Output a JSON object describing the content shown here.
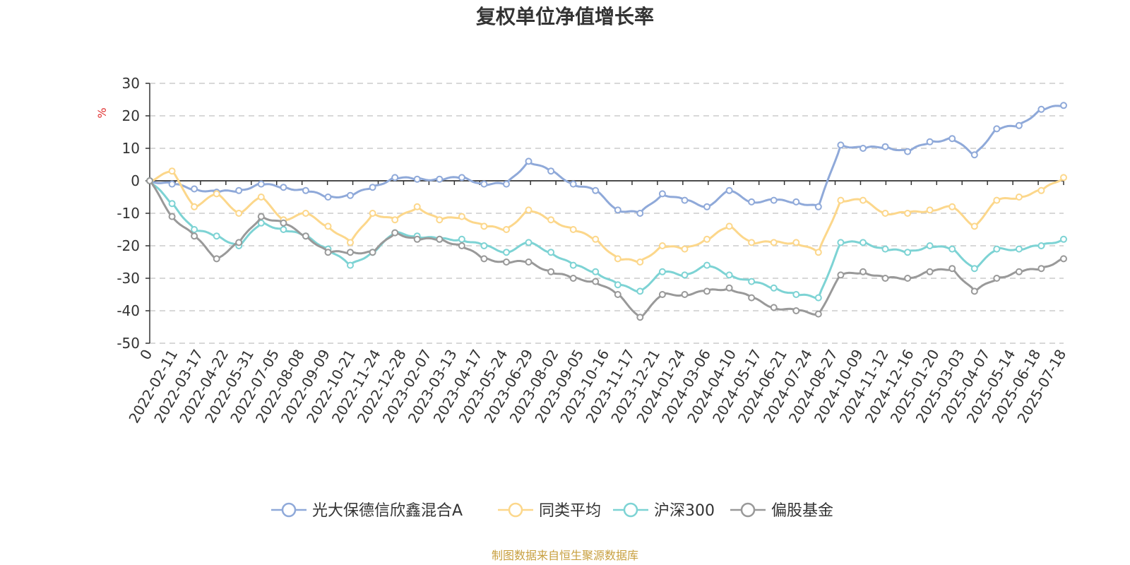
{
  "chart_data": {
    "type": "line",
    "title": "复权单位净值增长率",
    "ylabel": "%",
    "xlabel": "",
    "ylim": [
      -50,
      30
    ],
    "y_ticks": [
      30,
      20,
      10,
      0,
      -10,
      -20,
      -30,
      -40,
      -50
    ],
    "x_ticks": [
      "0",
      "2022-02-11",
      "2022-03-17",
      "2022-04-22",
      "2022-05-31",
      "2022-07-05",
      "2022-08-08",
      "2022-09-09",
      "2022-10-21",
      "2022-11-24",
      "2022-12-28",
      "2023-02-07",
      "2023-03-13",
      "2023-04-17",
      "2023-05-24",
      "2023-06-29",
      "2023-08-02",
      "2023-09-05",
      "2023-10-16",
      "2023-11-17",
      "2023-12-21",
      "2024-01-24",
      "2024-03-06",
      "2024-04-10",
      "2024-05-17",
      "2024-06-21",
      "2024-07-24",
      "2024-08-27",
      "2024-10-09",
      "2024-11-12",
      "2024-12-16",
      "2025-01-20",
      "2025-03-03",
      "2025-04-07",
      "2025-05-14",
      "2025-06-18",
      "2025-07-18"
    ],
    "grid": true,
    "legend_position": "bottom",
    "series": [
      {
        "name": "光大保德信欣鑫混合A",
        "color": "#8fa9d9",
        "values": [
          0,
          -1,
          -2.5,
          -3.5,
          -3,
          -1,
          -2,
          -3,
          -5,
          -4.5,
          -2,
          1,
          0.5,
          0.5,
          1,
          -1,
          -1,
          6,
          3,
          -1,
          -3,
          -9,
          -10,
          -4,
          -6,
          -8,
          -3,
          -6.5,
          -6,
          -6.5,
          -8,
          11,
          10,
          10.5,
          9,
          12,
          13,
          8,
          16,
          17,
          22,
          23.2
        ]
      },
      {
        "name": "同类平均",
        "color": "#fcd78b",
        "values": [
          0,
          3,
          -8,
          -4,
          -10,
          -5,
          -12,
          -10,
          -14,
          -19,
          -10,
          -12,
          -8,
          -12,
          -11,
          -14,
          -15,
          -9,
          -12,
          -15,
          -18,
          -24,
          -25,
          -20,
          -21,
          -18,
          -14,
          -19,
          -19,
          -19,
          -22,
          -6,
          -6,
          -10,
          -10,
          -9,
          -8,
          -14,
          -6,
          -5,
          -3,
          1
        ]
      },
      {
        "name": "沪深300",
        "color": "#7dd3d4",
        "values": [
          0,
          -7,
          -15,
          -17,
          -20,
          -13,
          -15,
          -17,
          -21,
          -26,
          -22,
          -16,
          -17,
          -18,
          -18,
          -20,
          -22,
          -19,
          -22,
          -26,
          -28,
          -32,
          -34,
          -28,
          -29,
          -26,
          -29,
          -31,
          -33,
          -35,
          -36,
          -19,
          -19,
          -21,
          -22,
          -20,
          -21,
          -27,
          -21,
          -21,
          -20,
          -18
        ]
      },
      {
        "name": "偏股基金",
        "color": "#999999",
        "values": [
          0,
          -11,
          -17,
          -24,
          -19,
          -11,
          -13,
          -17,
          -22,
          -22,
          -22,
          -16,
          -18,
          -18,
          -20,
          -24,
          -25,
          -25,
          -28,
          -30,
          -31,
          -35,
          -42,
          -35,
          -35,
          -34,
          -33,
          -36,
          -39,
          -40,
          -41,
          -29,
          -28,
          -30,
          -30,
          -28,
          -27,
          -34,
          -30,
          -28,
          -27,
          -24
        ]
      }
    ]
  },
  "source_note": "制图数据来自恒生聚源数据库",
  "colors": {
    "axis": "#333333",
    "grid": "#cccccc",
    "unit": "#e03030",
    "source": "#c8a040"
  }
}
